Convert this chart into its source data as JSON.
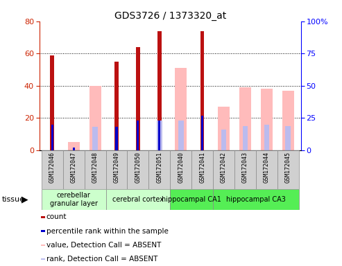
{
  "title": "GDS3726 / 1373320_at",
  "samples": [
    "GSM172046",
    "GSM172047",
    "GSM172048",
    "GSM172049",
    "GSM172050",
    "GSM172051",
    "GSM172040",
    "GSM172041",
    "GSM172042",
    "GSM172043",
    "GSM172044",
    "GSM172045"
  ],
  "count_values": [
    59,
    null,
    null,
    55,
    64,
    74,
    null,
    74,
    null,
    null,
    null,
    null
  ],
  "percentile_rank": [
    20,
    2,
    null,
    18,
    23,
    23,
    null,
    27,
    null,
    null,
    null,
    null
  ],
  "absent_value": [
    null,
    5,
    40,
    null,
    null,
    null,
    51,
    null,
    27,
    39,
    38,
    37
  ],
  "absent_rank": [
    null,
    null,
    18,
    null,
    null,
    23,
    23,
    null,
    16,
    19,
    20,
    19
  ],
  "ylim_left": [
    0,
    80
  ],
  "ylim_right": [
    0,
    100
  ],
  "yticks_left": [
    0,
    20,
    40,
    60,
    80
  ],
  "yticks_right": [
    0,
    25,
    50,
    75,
    100
  ],
  "color_count": "#bb1111",
  "color_rank": "#0000cc",
  "color_absent_val": "#ffbbbb",
  "color_absent_rank": "#bbbbee",
  "groups": [
    {
      "label": "cerebellar\ngranular layer",
      "indices": [
        0,
        1,
        2
      ],
      "color": "#ccffcc"
    },
    {
      "label": "cerebral cortex",
      "indices": [
        3,
        4,
        5
      ],
      "color": "#ccffcc"
    },
    {
      "label": "hippocampal CA1",
      "indices": [
        6,
        7
      ],
      "color": "#55ee55"
    },
    {
      "label": "hippocampal CA3",
      "indices": [
        8,
        9,
        10,
        11
      ],
      "color": "#55ee55"
    }
  ],
  "legend_items": [
    {
      "color": "#bb1111",
      "label": "count"
    },
    {
      "color": "#0000cc",
      "label": "percentile rank within the sample"
    },
    {
      "color": "#ffbbbb",
      "label": "value, Detection Call = ABSENT"
    },
    {
      "color": "#bbbbee",
      "label": "rank, Detection Call = ABSENT"
    }
  ]
}
